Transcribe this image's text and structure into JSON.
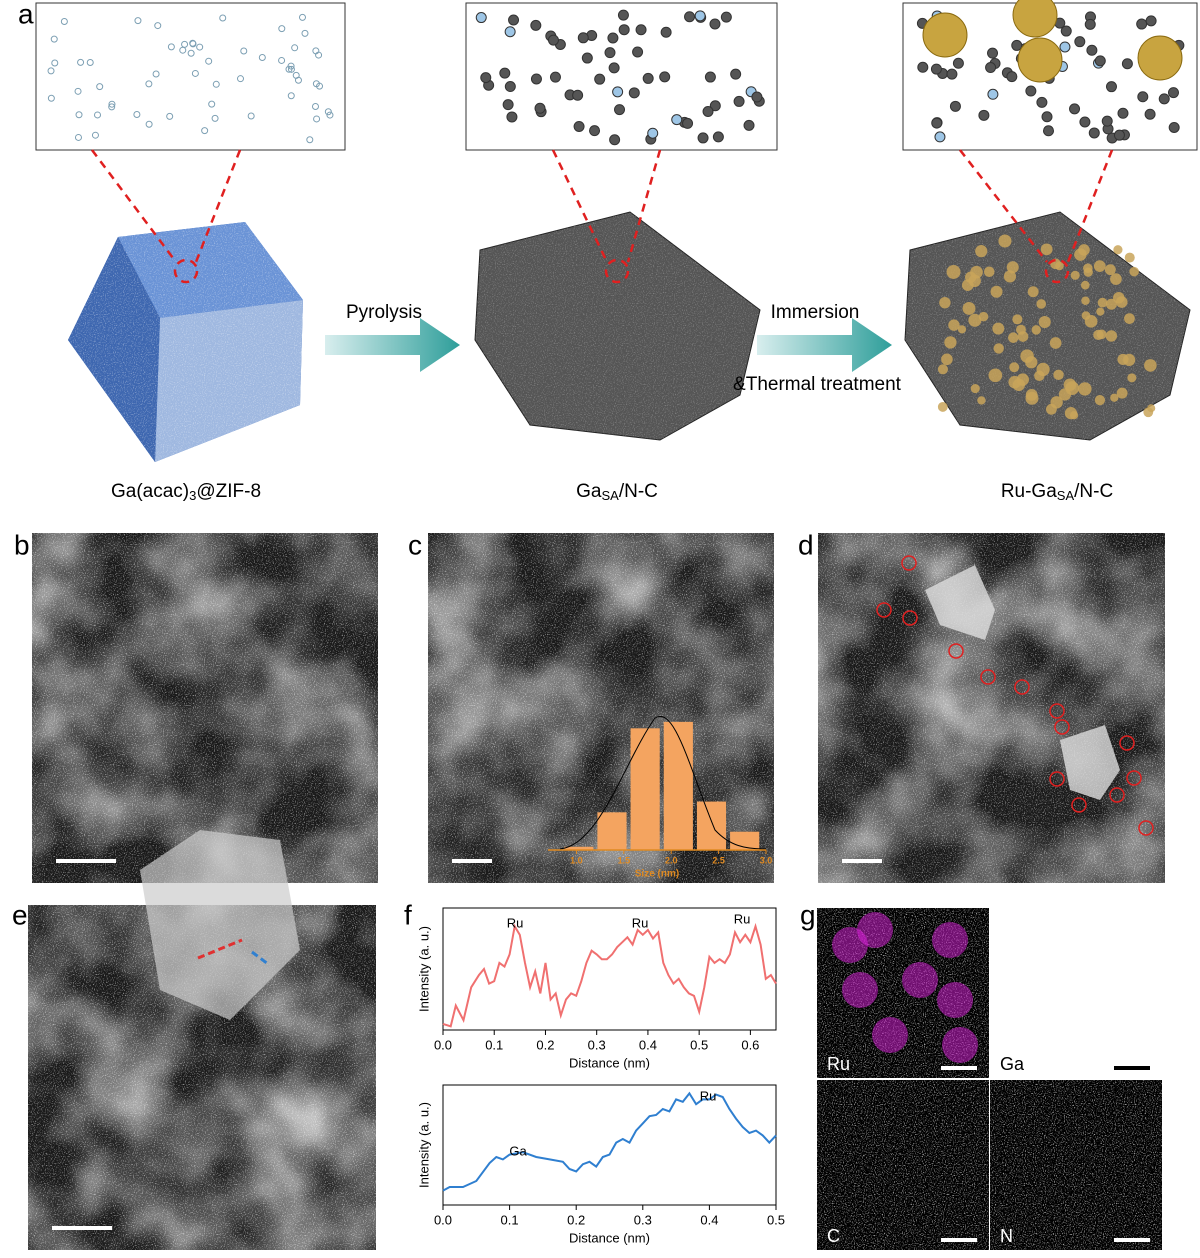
{
  "panels": [
    "a",
    "b",
    "c",
    "d",
    "e",
    "f",
    "g"
  ],
  "scheme": {
    "steps": [
      "Pyrolysis",
      "Immersion",
      "&Thermal treatment"
    ],
    "materials": [
      {
        "main": "Ga(acac)",
        "sub": "3",
        "rest": "@ZIF-8"
      },
      {
        "main": "Ga",
        "sub": "SA",
        "rest": "/N-C"
      },
      {
        "main": "Ru-Ga",
        "sub": "SA",
        "rest": "/N-C"
      }
    ]
  },
  "chart_data": [
    {
      "type": "histogram",
      "xlabel": "Size (nm)",
      "color": "#f4a460",
      "bins": [
        0.85,
        1.2,
        1.55,
        1.9,
        2.25,
        2.6,
        2.95
      ],
      "values": [
        3,
        35,
        113,
        119,
        45,
        17
      ],
      "xlim": [
        0.7,
        3.0
      ],
      "ylim": [
        0,
        130
      ],
      "xticks": [
        {
          "value": 1,
          "label": "1.0"
        },
        1.5,
        {
          "value": 2,
          "label": "2.0"
        },
        2.5,
        {
          "value": 3,
          "label": "3.0"
        }
      ]
    },
    {
      "type": "line",
      "xlabel": "Distance (nm)",
      "ylabel": "Intensity (a. u.)",
      "color": "#f07070",
      "annotations": [
        "Ru",
        "Ru",
        "Ru"
      ],
      "x": [
        0,
        0.015,
        0.025,
        0.04,
        0.055,
        0.07,
        0.08,
        0.09,
        0.1,
        0.11,
        0.12,
        0.13,
        0.14,
        0.15,
        0.16,
        0.17,
        0.18,
        0.19,
        0.2,
        0.21,
        0.22,
        0.23,
        0.24,
        0.25,
        0.26,
        0.27,
        0.28,
        0.29,
        0.3,
        0.31,
        0.32,
        0.33,
        0.34,
        0.35,
        0.36,
        0.37,
        0.38,
        0.39,
        0.4,
        0.41,
        0.42,
        0.43,
        0.44,
        0.45,
        0.46,
        0.47,
        0.48,
        0.49,
        0.5,
        0.51,
        0.52,
        0.53,
        0.54,
        0.55,
        0.56,
        0.57,
        0.58,
        0.59,
        0.6,
        0.61,
        0.62,
        0.63,
        0.64,
        0.65
      ],
      "values": [
        0.05,
        0.03,
        0.2,
        0.08,
        0.35,
        0.45,
        0.5,
        0.38,
        0.4,
        0.55,
        0.52,
        0.62,
        0.85,
        0.78,
        0.55,
        0.35,
        0.48,
        0.3,
        0.55,
        0.25,
        0.3,
        0.12,
        0.25,
        0.3,
        0.28,
        0.4,
        0.55,
        0.65,
        0.62,
        0.58,
        0.58,
        0.62,
        0.68,
        0.72,
        0.76,
        0.7,
        0.82,
        0.78,
        0.82,
        0.75,
        0.8,
        0.55,
        0.45,
        0.38,
        0.42,
        0.35,
        0.3,
        0.28,
        0.15,
        0.35,
        0.6,
        0.55,
        0.58,
        0.55,
        0.62,
        0.8,
        0.72,
        0.78,
        0.72,
        0.85,
        0.7,
        0.42,
        0.45,
        0.38
      ],
      "xlim": [
        0,
        0.65
      ],
      "ylim": [
        0,
        1
      ],
      "xticks": [
        {
          "value": 0,
          "label": "0.0"
        },
        0.1,
        0.2,
        0.3,
        0.4,
        0.5,
        0.6
      ]
    },
    {
      "type": "line",
      "xlabel": "Distance (nm)",
      "ylabel": "Intensity (a. u.)",
      "color": "#2f7fd0",
      "annotations": [
        "Ga",
        "Ru"
      ],
      "x": [
        0,
        0.01,
        0.03,
        0.05,
        0.07,
        0.08,
        0.09,
        0.1,
        0.12,
        0.14,
        0.16,
        0.18,
        0.19,
        0.2,
        0.21,
        0.22,
        0.23,
        0.24,
        0.25,
        0.26,
        0.27,
        0.28,
        0.29,
        0.3,
        0.31,
        0.32,
        0.33,
        0.34,
        0.35,
        0.36,
        0.37,
        0.38,
        0.39,
        0.4,
        0.41,
        0.42,
        0.43,
        0.44,
        0.45,
        0.46,
        0.47,
        0.48,
        0.49,
        0.5
      ],
      "values": [
        0.12,
        0.15,
        0.15,
        0.2,
        0.35,
        0.4,
        0.38,
        0.42,
        0.44,
        0.4,
        0.38,
        0.36,
        0.3,
        0.28,
        0.34,
        0.36,
        0.32,
        0.4,
        0.42,
        0.52,
        0.55,
        0.52,
        0.62,
        0.68,
        0.74,
        0.75,
        0.8,
        0.78,
        0.88,
        0.86,
        0.93,
        0.84,
        0.88,
        0.88,
        0.92,
        0.9,
        0.8,
        0.72,
        0.65,
        0.6,
        0.62,
        0.58,
        0.52,
        0.58
      ],
      "xlim": [
        0,
        0.5
      ],
      "ylim": [
        0,
        1
      ],
      "xticks": [
        {
          "value": 0,
          "label": "0.0"
        },
        0.1,
        0.2,
        0.3,
        0.4,
        0.5
      ]
    }
  ],
  "maps": [
    "Ru",
    "Ga",
    "C",
    "N"
  ]
}
